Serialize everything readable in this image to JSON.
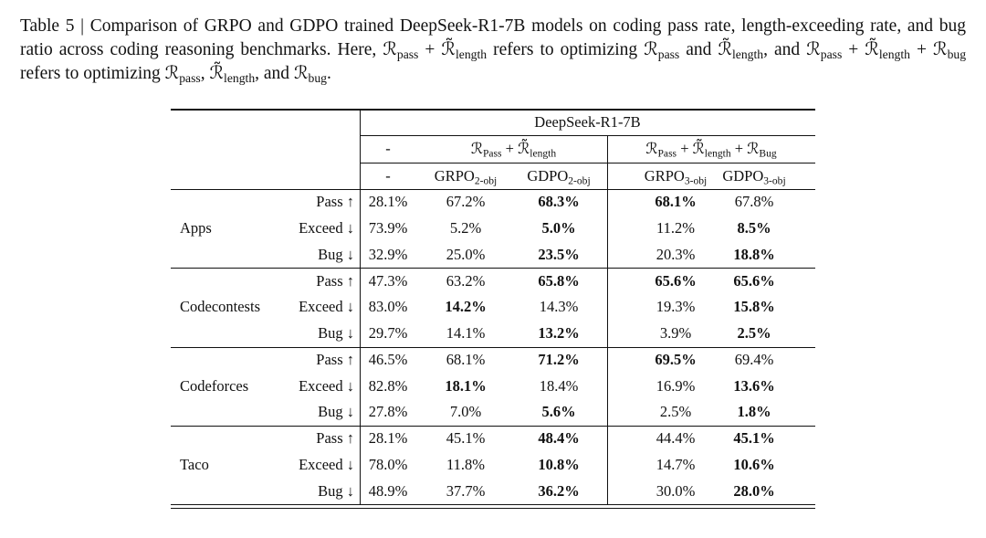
{
  "caption": [
    "Table 5 | Comparison of GRPO and GDPO trained DeepSeek-R1-7B models on coding pass rate, length-exceeding rate, and bug ratio across coding reasoning benchmarks. Here, ",
    {
      "sym": "ℛ",
      "sub": "pass"
    },
    " + ",
    {
      "sym": "ℛ̃",
      "sub": "length"
    },
    " refers to optimizing ",
    {
      "sym": "ℛ",
      "sub": "pass"
    },
    " and ",
    {
      "sym": "ℛ̃",
      "sub": "length"
    },
    ", and ",
    {
      "sym": "ℛ",
      "sub": "pass"
    },
    " + ",
    {
      "sym": "ℛ̃",
      "sub": "length"
    },
    " + ",
    {
      "sym": "ℛ",
      "sub": "bug"
    },
    " refers to optimizing ",
    {
      "sym": "ℛ",
      "sub": "pass"
    },
    ", ",
    {
      "sym": "ℛ̃",
      "sub": "length"
    },
    ", and ",
    {
      "sym": "ℛ",
      "sub": "bug"
    },
    "."
  ],
  "table": {
    "header": {
      "model": "DeepSeek-R1-7B",
      "groups": [
        [
          "-"
        ],
        [
          {
            "sym": "ℛ",
            "sub": "Pass"
          },
          " + ",
          {
            "sym": "ℛ̃",
            "sub": "length"
          }
        ],
        [
          {
            "sym": "ℛ",
            "sub": "Pass"
          },
          " + ",
          {
            "sym": "ℛ̃",
            "sub": "length"
          },
          " + ",
          {
            "sym": "ℛ",
            "sub": "Bug"
          }
        ]
      ],
      "columns": [
        {
          "sym": "-"
        },
        {
          "sym": "GRPO",
          "sub": "2-obj"
        },
        {
          "sym": "GDPO",
          "sub": "2-obj"
        },
        {
          "sym": "GRPO",
          "sub": "3-obj"
        },
        {
          "sym": "GDPO",
          "sub": "3-obj"
        }
      ]
    },
    "groups": [
      {
        "name": "Apps",
        "rows": [
          {
            "metric": "Pass ↑",
            "values": [
              "28.1%",
              "67.2%",
              "68.3%",
              "68.1%",
              "67.8%"
            ],
            "bold": [
              false,
              false,
              true,
              true,
              false
            ]
          },
          {
            "metric": "Exceed ↓",
            "values": [
              "73.9%",
              "5.2%",
              "5.0%",
              "11.2%",
              "8.5%"
            ],
            "bold": [
              false,
              false,
              true,
              false,
              true
            ]
          },
          {
            "metric": "Bug ↓",
            "values": [
              "32.9%",
              "25.0%",
              "23.5%",
              "20.3%",
              "18.8%"
            ],
            "bold": [
              false,
              false,
              true,
              false,
              true
            ]
          }
        ]
      },
      {
        "name": "Codecontests",
        "rows": [
          {
            "metric": "Pass ↑",
            "values": [
              "47.3%",
              "63.2%",
              "65.8%",
              "65.6%",
              "65.6%"
            ],
            "bold": [
              false,
              false,
              true,
              true,
              true
            ]
          },
          {
            "metric": "Exceed ↓",
            "values": [
              "83.0%",
              "14.2%",
              "14.3%",
              "19.3%",
              "15.8%"
            ],
            "bold": [
              false,
              true,
              false,
              false,
              true
            ]
          },
          {
            "metric": "Bug ↓",
            "values": [
              "29.7%",
              "14.1%",
              "13.2%",
              "3.9%",
              "2.5%"
            ],
            "bold": [
              false,
              false,
              true,
              false,
              true
            ]
          }
        ]
      },
      {
        "name": "Codeforces",
        "rows": [
          {
            "metric": "Pass ↑",
            "values": [
              "46.5%",
              "68.1%",
              "71.2%",
              "69.5%",
              "69.4%"
            ],
            "bold": [
              false,
              false,
              true,
              true,
              false
            ]
          },
          {
            "metric": "Exceed ↓",
            "values": [
              "82.8%",
              "18.1%",
              "18.4%",
              "16.9%",
              "13.6%"
            ],
            "bold": [
              false,
              true,
              false,
              false,
              true
            ]
          },
          {
            "metric": "Bug ↓",
            "values": [
              "27.8%",
              "7.0%",
              "5.6%",
              "2.5%",
              "1.8%"
            ],
            "bold": [
              false,
              false,
              true,
              false,
              true
            ]
          }
        ]
      },
      {
        "name": "Taco",
        "rows": [
          {
            "metric": "Pass ↑",
            "values": [
              "28.1%",
              "45.1%",
              "48.4%",
              "44.4%",
              "45.1%"
            ],
            "bold": [
              false,
              false,
              true,
              false,
              true
            ]
          },
          {
            "metric": "Exceed ↓",
            "values": [
              "78.0%",
              "11.8%",
              "10.8%",
              "14.7%",
              "10.6%"
            ],
            "bold": [
              false,
              false,
              true,
              false,
              true
            ]
          },
          {
            "metric": "Bug ↓",
            "values": [
              "48.9%",
              "37.7%",
              "36.2%",
              "30.0%",
              "28.0%"
            ],
            "bold": [
              false,
              false,
              true,
              false,
              true
            ]
          }
        ]
      }
    ]
  }
}
